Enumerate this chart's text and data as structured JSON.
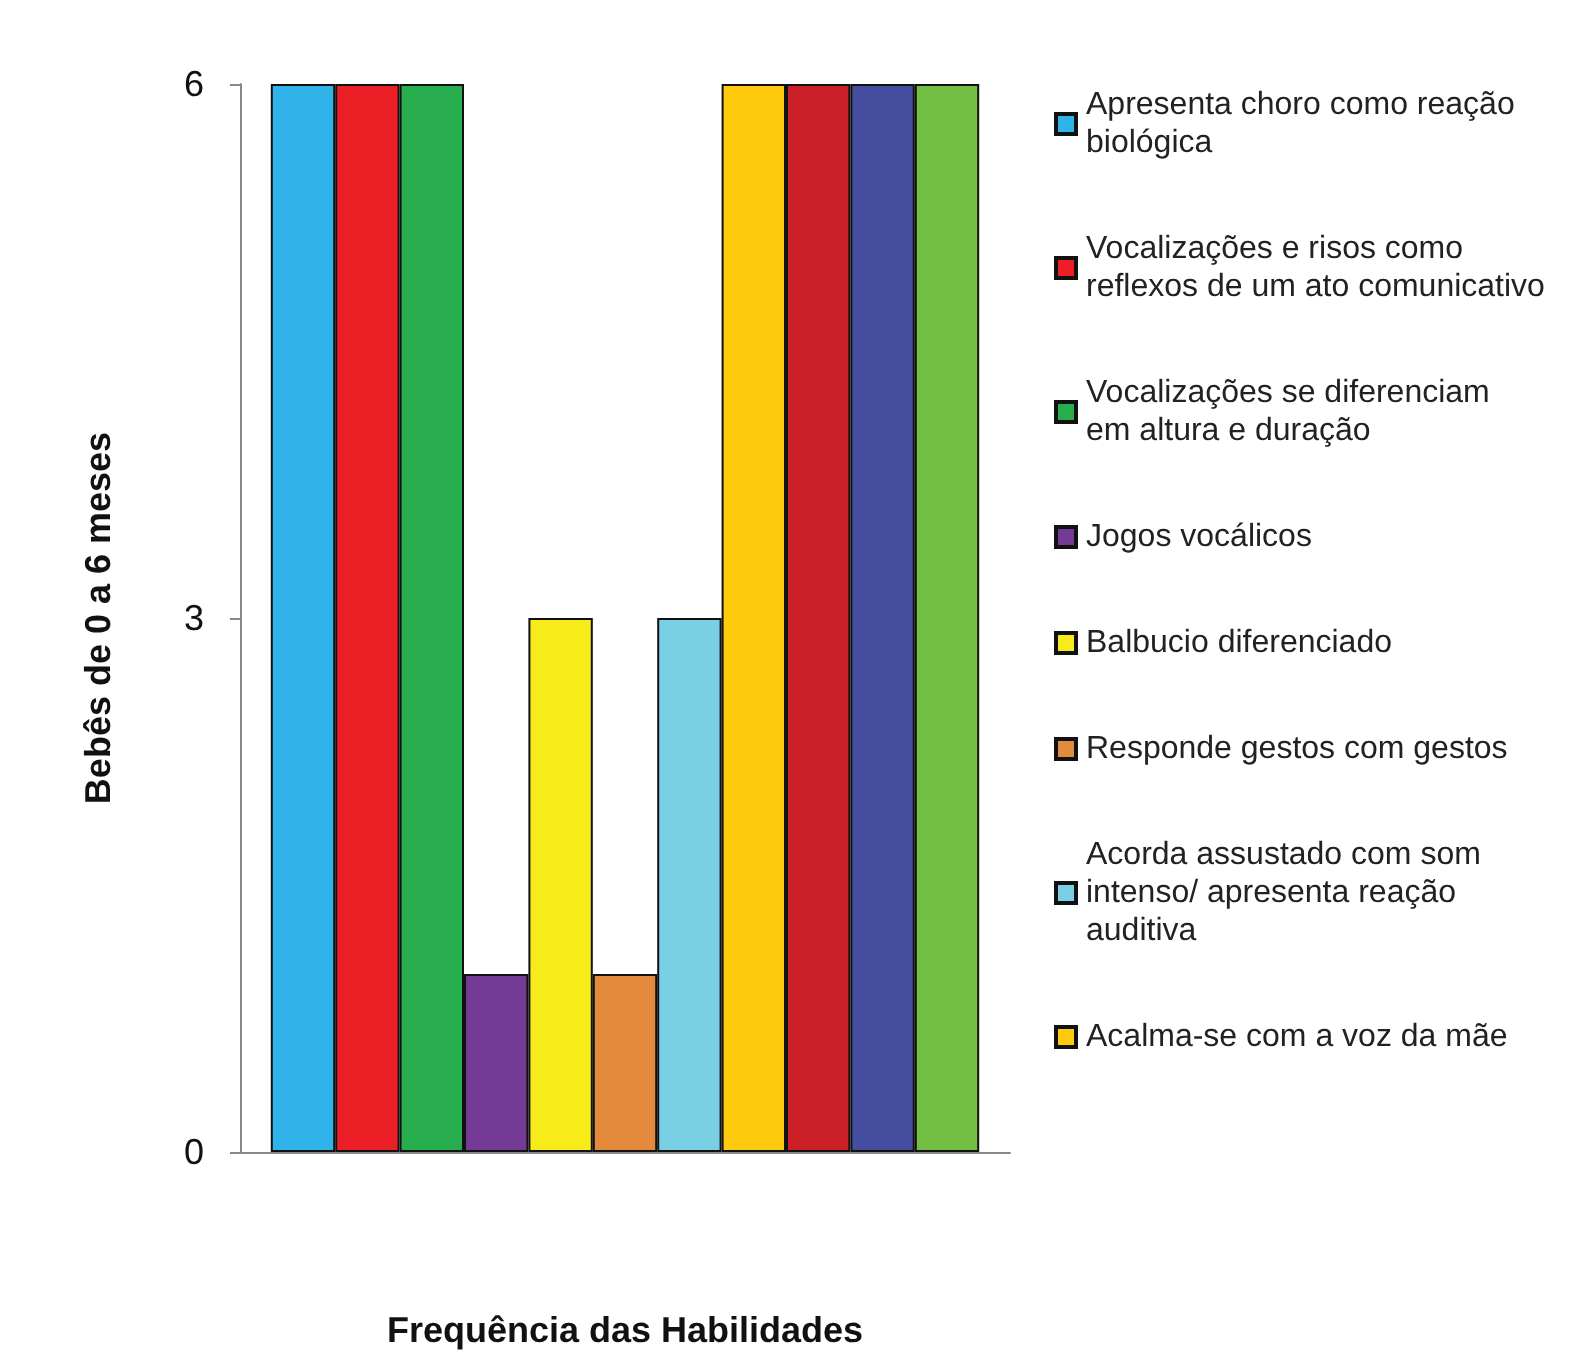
{
  "chart_data": {
    "type": "bar",
    "xlabel": "Frequência das Habilidades",
    "ylabel": "Bebês de 0 a 6 meses",
    "categories": [
      null
    ],
    "series": [
      {
        "name": "Apresenta choro como reação biológica",
        "color": "#2fb3e8",
        "values": [
          6
        ]
      },
      {
        "name": "Vocalizações e risos como reflexos de um ato comunicativo",
        "color": "#ec1f26",
        "values": [
          6
        ]
      },
      {
        "name": "Vocalizações se diferenciam em altura e duração",
        "color": "#27ad4e",
        "values": [
          6
        ]
      },
      {
        "name": "Jogos vocálicos",
        "color": "#733a96",
        "values": [
          1
        ]
      },
      {
        "name": "Balbucio diferenciado",
        "color": "#f7ec1a",
        "values": [
          3
        ]
      },
      {
        "name": "Responde gestos com gestos",
        "color": "#e48a3d",
        "values": [
          1
        ]
      },
      {
        "name": "Acorda assustado com som intenso/ apresenta reação auditiva",
        "color": "#79cfe4",
        "values": [
          3
        ]
      },
      {
        "name": "Acalma-se com a voz da mãe",
        "color": "#fdca0d",
        "values": [
          6
        ]
      },
      {
        "color": "#cb2027",
        "values": [
          6
        ]
      },
      {
        "color": "#444d9e",
        "values": [
          6
        ]
      },
      {
        "color": "#72bf44",
        "values": [
          6
        ]
      }
    ],
    "ylim": [
      0,
      6
    ],
    "yticks": [
      0,
      3,
      6
    ],
    "legend": "right"
  }
}
